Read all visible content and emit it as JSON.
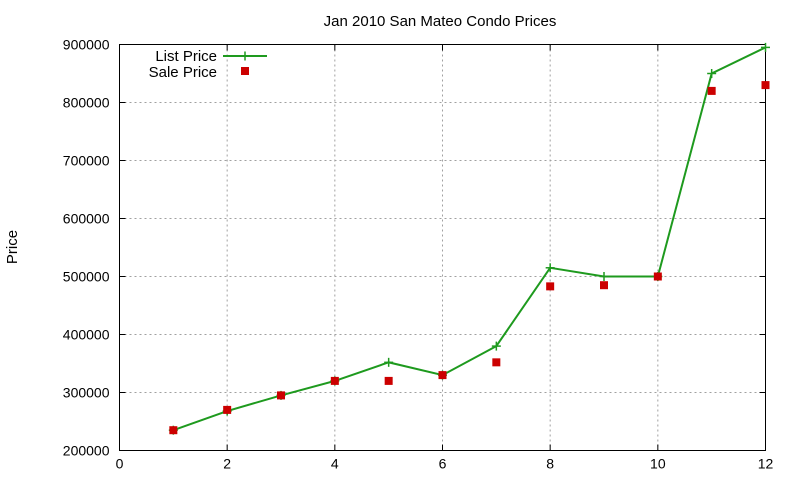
{
  "chart_data": {
    "type": "line",
    "title": "Jan 2010 San Mateo Condo Prices",
    "xlabel": "",
    "ylabel": "Price",
    "xlim": [
      0,
      12
    ],
    "ylim": [
      200000,
      900000
    ],
    "x_ticks": [
      0,
      2,
      4,
      6,
      8,
      10,
      12
    ],
    "y_ticks": [
      200000,
      300000,
      400000,
      500000,
      600000,
      700000,
      800000,
      900000
    ],
    "grid": true,
    "legend_position": "top-left",
    "series": [
      {
        "name": "List Price",
        "style": "line+plus-markers",
        "color": "#1e9a1e",
        "x": [
          1,
          2,
          3,
          4,
          5,
          6,
          7,
          8,
          9,
          10,
          11,
          12
        ],
        "values": [
          235000,
          268000,
          295000,
          320000,
          352000,
          330000,
          380000,
          515000,
          500000,
          500000,
          850000,
          895000
        ]
      },
      {
        "name": "Sale Price",
        "style": "square-markers",
        "color": "#cc0000",
        "x": [
          1,
          2,
          3,
          4,
          5,
          6,
          7,
          8,
          9,
          10,
          11,
          12
        ],
        "values": [
          235000,
          270000,
          295000,
          320000,
          320000,
          330000,
          352000,
          483000,
          485000,
          500000,
          820000,
          830000
        ]
      }
    ]
  }
}
